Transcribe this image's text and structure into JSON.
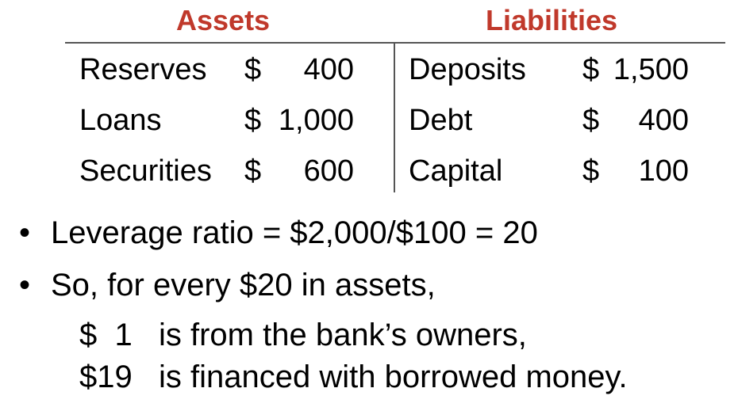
{
  "colors": {
    "heading": "#c0392b",
    "text": "#000000",
    "rule": "#555555"
  },
  "balance_sheet": {
    "assets_heading": "Assets",
    "liabilities_heading": "Liabilities",
    "assets": [
      {
        "label": "Reserves",
        "currency": "$",
        "amount": "400"
      },
      {
        "label": "Loans",
        "currency": "$",
        "amount": "1,000"
      },
      {
        "label": "Securities",
        "currency": "$",
        "amount": "600"
      }
    ],
    "liabilities": [
      {
        "label": "Deposits",
        "currency": "$",
        "amount": "1,500"
      },
      {
        "label": "Debt",
        "currency": "$",
        "amount": "400"
      },
      {
        "label": "Capital",
        "currency": "$",
        "amount": "100"
      }
    ]
  },
  "bullets": [
    {
      "marker": "•",
      "text": "Leverage ratio = $2,000/$100 = 20"
    },
    {
      "marker": "•",
      "text": "So, for every $20 in assets,"
    }
  ],
  "sub_lines": [
    {
      "amount": "$  1",
      "text": "is from the bank’s owners,"
    },
    {
      "amount": "$19",
      "text": "is financed with borrowed money."
    }
  ]
}
